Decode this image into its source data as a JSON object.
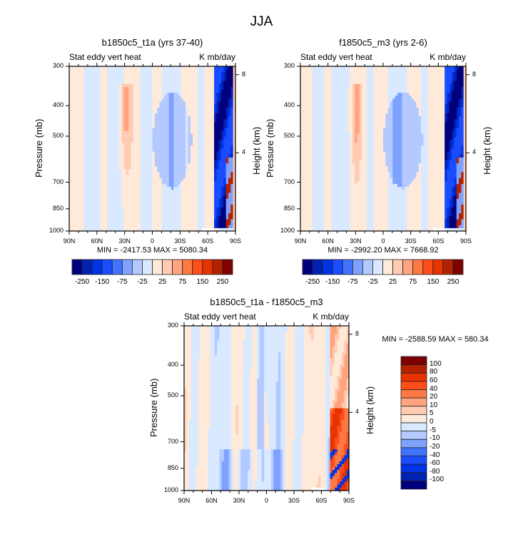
{
  "figure_title": "JJA",
  "chart_data": [
    {
      "type": "heatmap",
      "title": "b1850c5_t1a (yrs 37-40)",
      "left_label": "Stat eddy vert heat",
      "right_label": "K mb/day",
      "xlabel": "",
      "ylabel": "Pressure (mb)",
      "y2label": "Height (km)",
      "x_ticks": [
        "90N",
        "60N",
        "30N",
        "0",
        "30S",
        "60S",
        "90S"
      ],
      "y_ticks": [
        "300",
        "400",
        "500",
        "700",
        "850",
        "1000"
      ],
      "y_tick_values": [
        300,
        400,
        500,
        700,
        850,
        1000
      ],
      "y2_ticks": [
        "8",
        "4"
      ],
      "y2_tick_values": [
        8,
        4
      ],
      "xlim": [
        -90,
        90
      ],
      "ylim": [
        1000,
        300
      ],
      "min_max_text": "MIN = -2417.53  MAX = 5080.34",
      "min": -2417.53,
      "max": 5080.34,
      "colorbar": {
        "orientation": "horizontal",
        "levels": [
          -250,
          -200,
          -150,
          -100,
          -75,
          -50,
          -25,
          0,
          25,
          50,
          75,
          100,
          150,
          200,
          250
        ],
        "labels": [
          "-250",
          "-150",
          "-75",
          "-25",
          "25",
          "75",
          "150",
          "250"
        ]
      },
      "features": [
        {
          "desc": "light blue background",
          "level": "0 to -25"
        },
        {
          "desc": "orange column near 30N, 400-850 mb",
          "level": "25 to 75"
        },
        {
          "desc": "intense blue column 60S-90S, 300-1000 mb",
          "level": "< -250"
        },
        {
          "desc": "red patches near 80S-90S below 600 mb",
          "level": "> 150"
        }
      ]
    },
    {
      "type": "heatmap",
      "title": "f1850c5_m3 (yrs 2-6)",
      "left_label": "Stat eddy vert heat",
      "right_label": "K mb/day",
      "xlabel": "",
      "ylabel": "Pressure (mb)",
      "y2label": "Height (km)",
      "x_ticks": [
        "90N",
        "60N",
        "30N",
        "0",
        "30S",
        "60S",
        "90S"
      ],
      "y_ticks": [
        "300",
        "400",
        "500",
        "700",
        "850",
        "1000"
      ],
      "y_tick_values": [
        300,
        400,
        500,
        700,
        850,
        1000
      ],
      "y2_ticks": [
        "8",
        "4"
      ],
      "y2_tick_values": [
        8,
        4
      ],
      "xlim": [
        -90,
        90
      ],
      "ylim": [
        1000,
        300
      ],
      "min_max_text": "MIN = -2992.20  MAX = 7668.92",
      "min": -2992.2,
      "max": 7668.92,
      "colorbar": {
        "orientation": "horizontal",
        "levels": [
          -250,
          -200,
          -150,
          -100,
          -75,
          -50,
          -25,
          0,
          25,
          50,
          75,
          100,
          150,
          200,
          250
        ],
        "labels": [
          "-250",
          "-150",
          "-75",
          "-25",
          "25",
          "75",
          "150",
          "250"
        ]
      },
      "features": [
        {
          "desc": "light blue background",
          "level": "0 to -25"
        },
        {
          "desc": "orange column near 30N, 400-850 mb",
          "level": "25 to 75"
        },
        {
          "desc": "intense blue column 60S-90S",
          "level": "< -250"
        }
      ]
    },
    {
      "type": "heatmap",
      "title": "b1850c5_t1a - f1850c5_m3",
      "left_label": "Stat eddy vert heat",
      "right_label": "K mb/day",
      "xlabel": "",
      "ylabel": "Pressure (mb)",
      "y2label": "Height (km)",
      "x_ticks": [
        "90N",
        "60N",
        "30N",
        "0",
        "30S",
        "60S",
        "90S"
      ],
      "y_ticks": [
        "300",
        "400",
        "500",
        "700",
        "850",
        "1000"
      ],
      "y_tick_values": [
        300,
        400,
        500,
        700,
        850,
        1000
      ],
      "y2_ticks": [
        "8",
        "4"
      ],
      "y2_tick_values": [
        8,
        4
      ],
      "xlim": [
        -90,
        90
      ],
      "ylim": [
        1000,
        300
      ],
      "min_max_text": "MIN = -2588.59  MAX = 580.34",
      "min": -2588.59,
      "max": 580.34,
      "colorbar": {
        "orientation": "vertical",
        "levels": [
          -100,
          -80,
          -60,
          -40,
          -20,
          -10,
          -5,
          0,
          5,
          10,
          20,
          40,
          60,
          80,
          100
        ],
        "labels": [
          "100",
          "80",
          "60",
          "40",
          "20",
          "10",
          "5",
          "0",
          "-5",
          "-10",
          "-20",
          "-40",
          "-60",
          "-80",
          "-100"
        ]
      },
      "features": [
        {
          "desc": "alternating light blue / light orange vertical bands",
          "level": "-10 to 10"
        },
        {
          "desc": "blue streak near 0, 300-700 mb",
          "level": "-20 to -40"
        },
        {
          "desc": "strong red region 70S-90S below 500 mb",
          "level": "> 40"
        },
        {
          "desc": "dark blue spots near 85S near surface",
          "level": "< -80"
        }
      ]
    }
  ],
  "palette": [
    "#00007f",
    "#0022b3",
    "#0033e6",
    "#1a4dff",
    "#4273ff",
    "#7fa2ff",
    "#b3c9ff",
    "#d9e9ff",
    "#ffead9",
    "#ffcbb3",
    "#ffa47f",
    "#ff7a42",
    "#ff4d1a",
    "#e63300",
    "#b32200",
    "#7f0000"
  ]
}
